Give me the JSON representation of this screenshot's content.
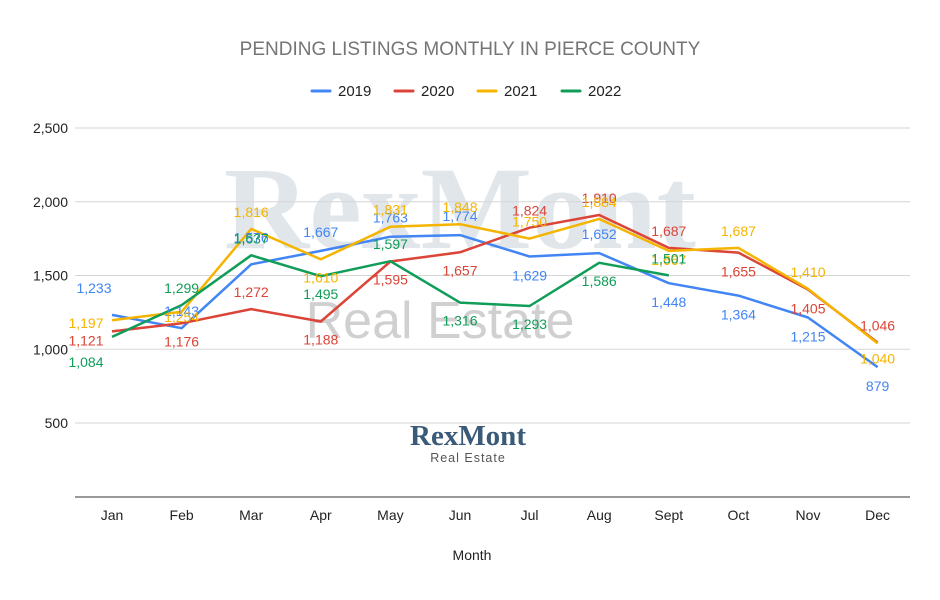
{
  "chart_data": {
    "type": "line",
    "title": "PENDING LISTINGS MONTHLY IN PIERCE COUNTY",
    "xlabel": "Month",
    "ylabel": "",
    "categories": [
      "Jan",
      "Feb",
      "Mar",
      "Apr",
      "May",
      "Jun",
      "Jul",
      "Aug",
      "Sept",
      "Oct",
      "Nov",
      "Dec"
    ],
    "ylim": [
      500,
      2500
    ],
    "yticks": [
      500,
      1000,
      1500,
      2000,
      2500
    ],
    "ytick_labels": [
      "500",
      "1,000",
      "1,500",
      "2,000",
      "2,500"
    ],
    "grid": true,
    "legend_position": "top-center",
    "series": [
      {
        "name": "2019",
        "color": "#4285f4",
        "values": [
          1233,
          1143,
          1576,
          1667,
          1763,
          1774,
          1629,
          1652,
          1448,
          1364,
          1215,
          879
        ]
      },
      {
        "name": "2020",
        "color": "#db4437",
        "values": [
          1121,
          1176,
          1272,
          1188,
          1595,
          1657,
          1824,
          1910,
          1687,
          1655,
          1405,
          1046
        ]
      },
      {
        "name": "2021",
        "color": "#f4b400",
        "values": [
          1197,
          1254,
          1816,
          1610,
          1831,
          1848,
          1750,
          1884,
          1667,
          1687,
          1410,
          1040
        ]
      },
      {
        "name": "2022",
        "color": "#0f9d58",
        "values": [
          1084,
          1299,
          1637,
          1495,
          1597,
          1316,
          1293,
          1586,
          1501,
          null,
          null,
          null
        ]
      }
    ]
  },
  "watermark": {
    "main": "RexMont",
    "sub": "Real Estate"
  },
  "logo": {
    "main": "RexMont",
    "sub": "Real Estate"
  }
}
